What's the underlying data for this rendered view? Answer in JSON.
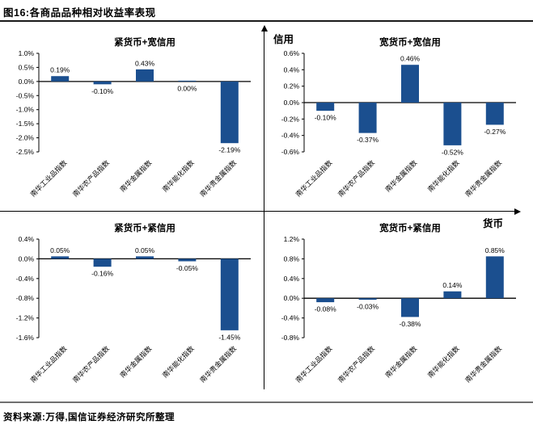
{
  "page": {
    "title": "图16:各商品品种相对收益率表现",
    "source": "资料来源:万得,国信证券经济研究所整理"
  },
  "axes": {
    "vertical_label": "信用",
    "horizontal_label": "货币"
  },
  "bar_color": "#1B4F8F",
  "chart_data": [
    {
      "type": "bar",
      "position": "top-left",
      "title": "紧货币+宽信用",
      "categories": [
        "南华工业品指数",
        "南华农产品指数",
        "南华金属指数",
        "南华能化指数",
        "南华贵金属指数"
      ],
      "values": [
        0.19,
        -0.1,
        0.43,
        0.0,
        -2.19
      ],
      "value_labels": [
        "0.19%",
        "-0.10%",
        "0.43%",
        "0.00%",
        "-2.19%"
      ],
      "ylim": [
        -2.5,
        1.0
      ],
      "yticks": [
        1.0,
        0.5,
        0.0,
        -0.5,
        -1.0,
        -1.5,
        -2.0,
        -2.5
      ],
      "ytick_labels": [
        "1.0%",
        "0.5%",
        "0.0%",
        "-0.5%",
        "-1.0%",
        "-1.5%",
        "-2.0%",
        "-2.5%"
      ],
      "grid": false,
      "legend": "none"
    },
    {
      "type": "bar",
      "position": "top-right",
      "title": "宽货币+宽信用",
      "categories": [
        "南华工业品指数",
        "南华农产品指数",
        "南华金属指数",
        "南华能化指数",
        "南华贵金属指数"
      ],
      "values": [
        -0.1,
        -0.37,
        0.46,
        -0.52,
        -0.27
      ],
      "value_labels": [
        "-0.10%",
        "-0.37%",
        "0.46%",
        "-0.52%",
        "-0.27%"
      ],
      "ylim": [
        -0.6,
        0.6
      ],
      "yticks": [
        0.6,
        0.4,
        0.2,
        0.0,
        -0.2,
        -0.4,
        -0.6
      ],
      "ytick_labels": [
        "0.6%",
        "0.4%",
        "0.2%",
        "0.0%",
        "-0.2%",
        "-0.4%",
        "-0.6%"
      ],
      "grid": false,
      "legend": "none"
    },
    {
      "type": "bar",
      "position": "bottom-left",
      "title": "紧货币+紧信用",
      "categories": [
        "南华工业品指数",
        "南华农产品指数",
        "南华金属指数",
        "南华能化指数",
        "南华贵金属指数"
      ],
      "values": [
        0.05,
        -0.16,
        0.05,
        -0.05,
        -1.45
      ],
      "value_labels": [
        "0.05%",
        "-0.16%",
        "0.05%",
        "-0.05%",
        "-1.45%"
      ],
      "ylim": [
        -1.6,
        0.4
      ],
      "yticks": [
        0.4,
        0.0,
        -0.4,
        -0.8,
        -1.2,
        -1.6
      ],
      "ytick_labels": [
        "0.4%",
        "0.0%",
        "-0.4%",
        "-0.8%",
        "-1.2%",
        "-1.6%"
      ],
      "grid": false,
      "legend": "none"
    },
    {
      "type": "bar",
      "position": "bottom-right",
      "title": "宽货币+紧信用",
      "categories": [
        "南华工业品指数",
        "南华农产品指数",
        "南华金属指数",
        "南华能化指数",
        "南华贵金属指数"
      ],
      "values": [
        -0.08,
        -0.03,
        -0.38,
        0.14,
        0.85
      ],
      "value_labels": [
        "-0.08%",
        "-0.03%",
        "-0.38%",
        "0.14%",
        "0.85%"
      ],
      "ylim": [
        -0.8,
        1.2
      ],
      "yticks": [
        1.2,
        0.8,
        0.4,
        0.0,
        -0.4,
        -0.8
      ],
      "ytick_labels": [
        "1.2%",
        "0.8%",
        "0.4%",
        "0.0%",
        "-0.4%",
        "-0.8%"
      ],
      "grid": false,
      "legend": "none"
    }
  ]
}
